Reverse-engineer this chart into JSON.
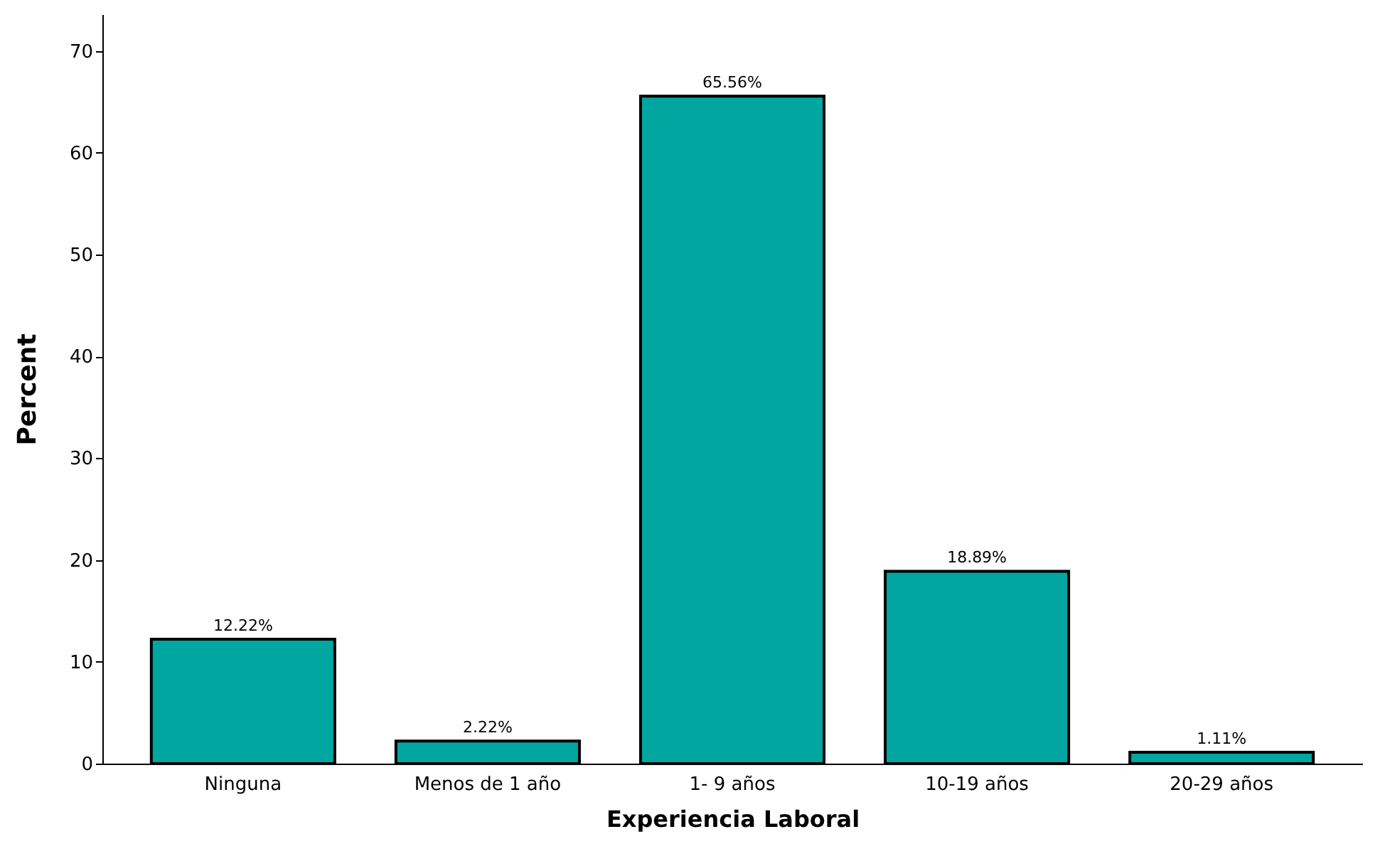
{
  "chart_data": {
    "type": "bar",
    "xlabel": "Experiencia Laboral",
    "ylabel": "Percent",
    "categories": [
      "Ninguna",
      "Menos de 1 año",
      "1- 9 años",
      "10-19 años",
      "20-29 años"
    ],
    "values": [
      12.22,
      2.22,
      65.56,
      18.89,
      1.11
    ],
    "value_labels": [
      "12.22%",
      "2.22%",
      "65.56%",
      "18.89%",
      "1.11%"
    ],
    "color": "#00a6a0",
    "ylim": [
      0,
      73.6
    ],
    "yticks": [
      0,
      10,
      20,
      30,
      40,
      50,
      60,
      70
    ],
    "grid": false
  }
}
